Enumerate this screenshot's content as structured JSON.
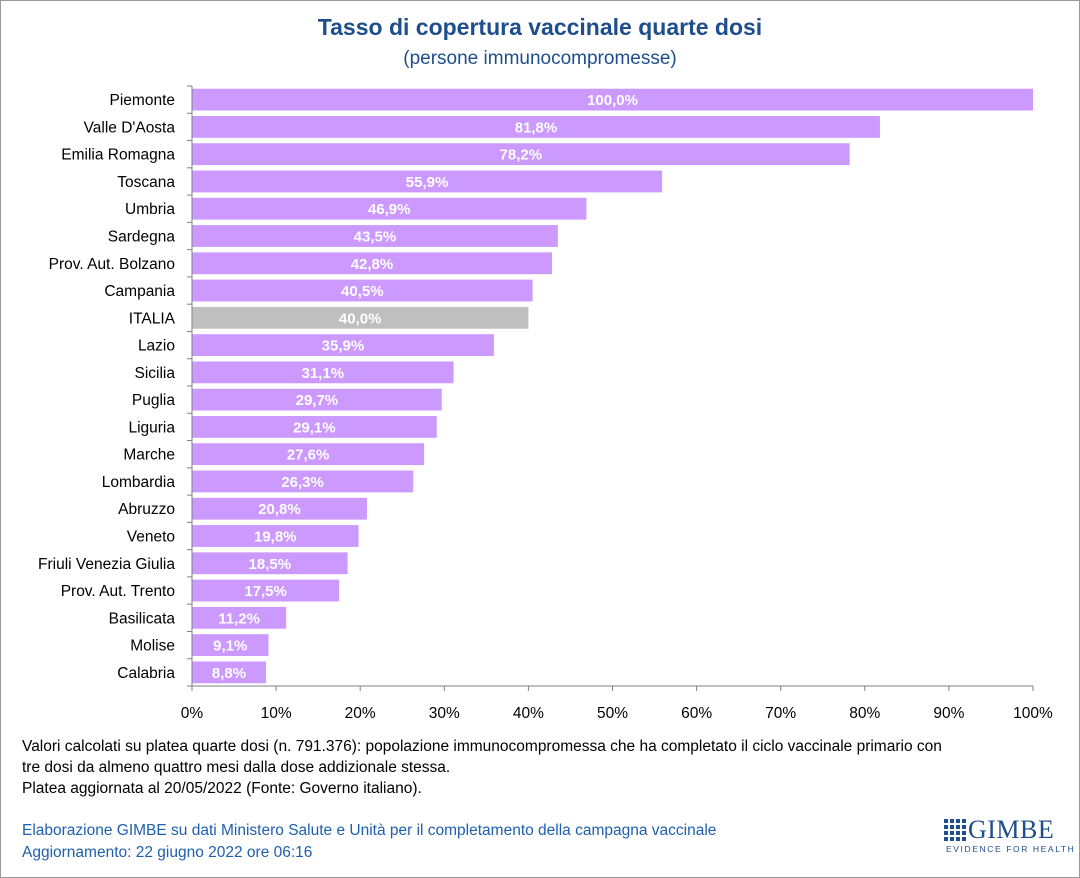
{
  "header": {
    "title": "Tasso di copertura vaccinale quarte dosi",
    "subtitle": "(persone immunocompromesse)"
  },
  "colors": {
    "bar": "#cc99ff",
    "highlight_bar": "#bfbfbf",
    "label_text": "#ffffff",
    "axis": "#808080",
    "title": "#1f4e8c",
    "source_text": "#1f5fae"
  },
  "chart_data": {
    "type": "bar",
    "orientation": "horizontal",
    "title": "Tasso di copertura vaccinale quarte dosi",
    "subtitle": "(persone immunocompromesse)",
    "xlabel": "",
    "ylabel": "",
    "xlim": [
      0,
      100
    ],
    "x_ticks": [
      "0%",
      "10%",
      "20%",
      "30%",
      "40%",
      "50%",
      "60%",
      "70%",
      "80%",
      "90%",
      "100%"
    ],
    "grid": false,
    "categories": [
      "Piemonte",
      "Valle D'Aosta",
      "Emilia Romagna",
      "Toscana",
      "Umbria",
      "Sardegna",
      "Prov. Aut. Bolzano",
      "Campania",
      "ITALIA",
      "Lazio",
      "Sicilia",
      "Puglia",
      "Liguria",
      "Marche",
      "Lombardia",
      "Abruzzo",
      "Veneto",
      "Friuli Venezia Giulia",
      "Prov. Aut. Trento",
      "Basilicata",
      "Molise",
      "Calabria"
    ],
    "values": [
      100.0,
      81.8,
      78.2,
      55.9,
      46.9,
      43.5,
      42.8,
      40.5,
      40.0,
      35.9,
      31.1,
      29.7,
      29.1,
      27.6,
      26.3,
      20.8,
      19.8,
      18.5,
      17.5,
      11.2,
      9.1,
      8.8
    ],
    "value_labels": [
      "100,0%",
      "81,8%",
      "78,2%",
      "55,9%",
      "46,9%",
      "43,5%",
      "42,8%",
      "40,5%",
      "40,0%",
      "35,9%",
      "31,1%",
      "29,7%",
      "29,1%",
      "27,6%",
      "26,3%",
      "20,8%",
      "19,8%",
      "18,5%",
      "17,5%",
      "11,2%",
      "9,1%",
      "8,8%"
    ],
    "highlight_category": "ITALIA"
  },
  "notes": [
    "Valori calcolati su platea quarte dosi (n. 791.376): popolazione immunocompromessa che ha completato il ciclo vaccinale primario con",
    "tre dosi da almeno quattro mesi dalla dose addizionale stessa.",
    "Platea aggiornata al 20/05/2022 (Fonte: Governo italiano)."
  ],
  "source": {
    "line1": "Elaborazione GIMBE su dati Ministero Salute e Unità per il completamento della campagna vaccinale",
    "line2": "Aggiornamento: 22 giugno 2022 ore 06:16"
  },
  "logo": {
    "name": "GIMBE",
    "tagline": "EVIDENCE FOR HEALTH"
  }
}
